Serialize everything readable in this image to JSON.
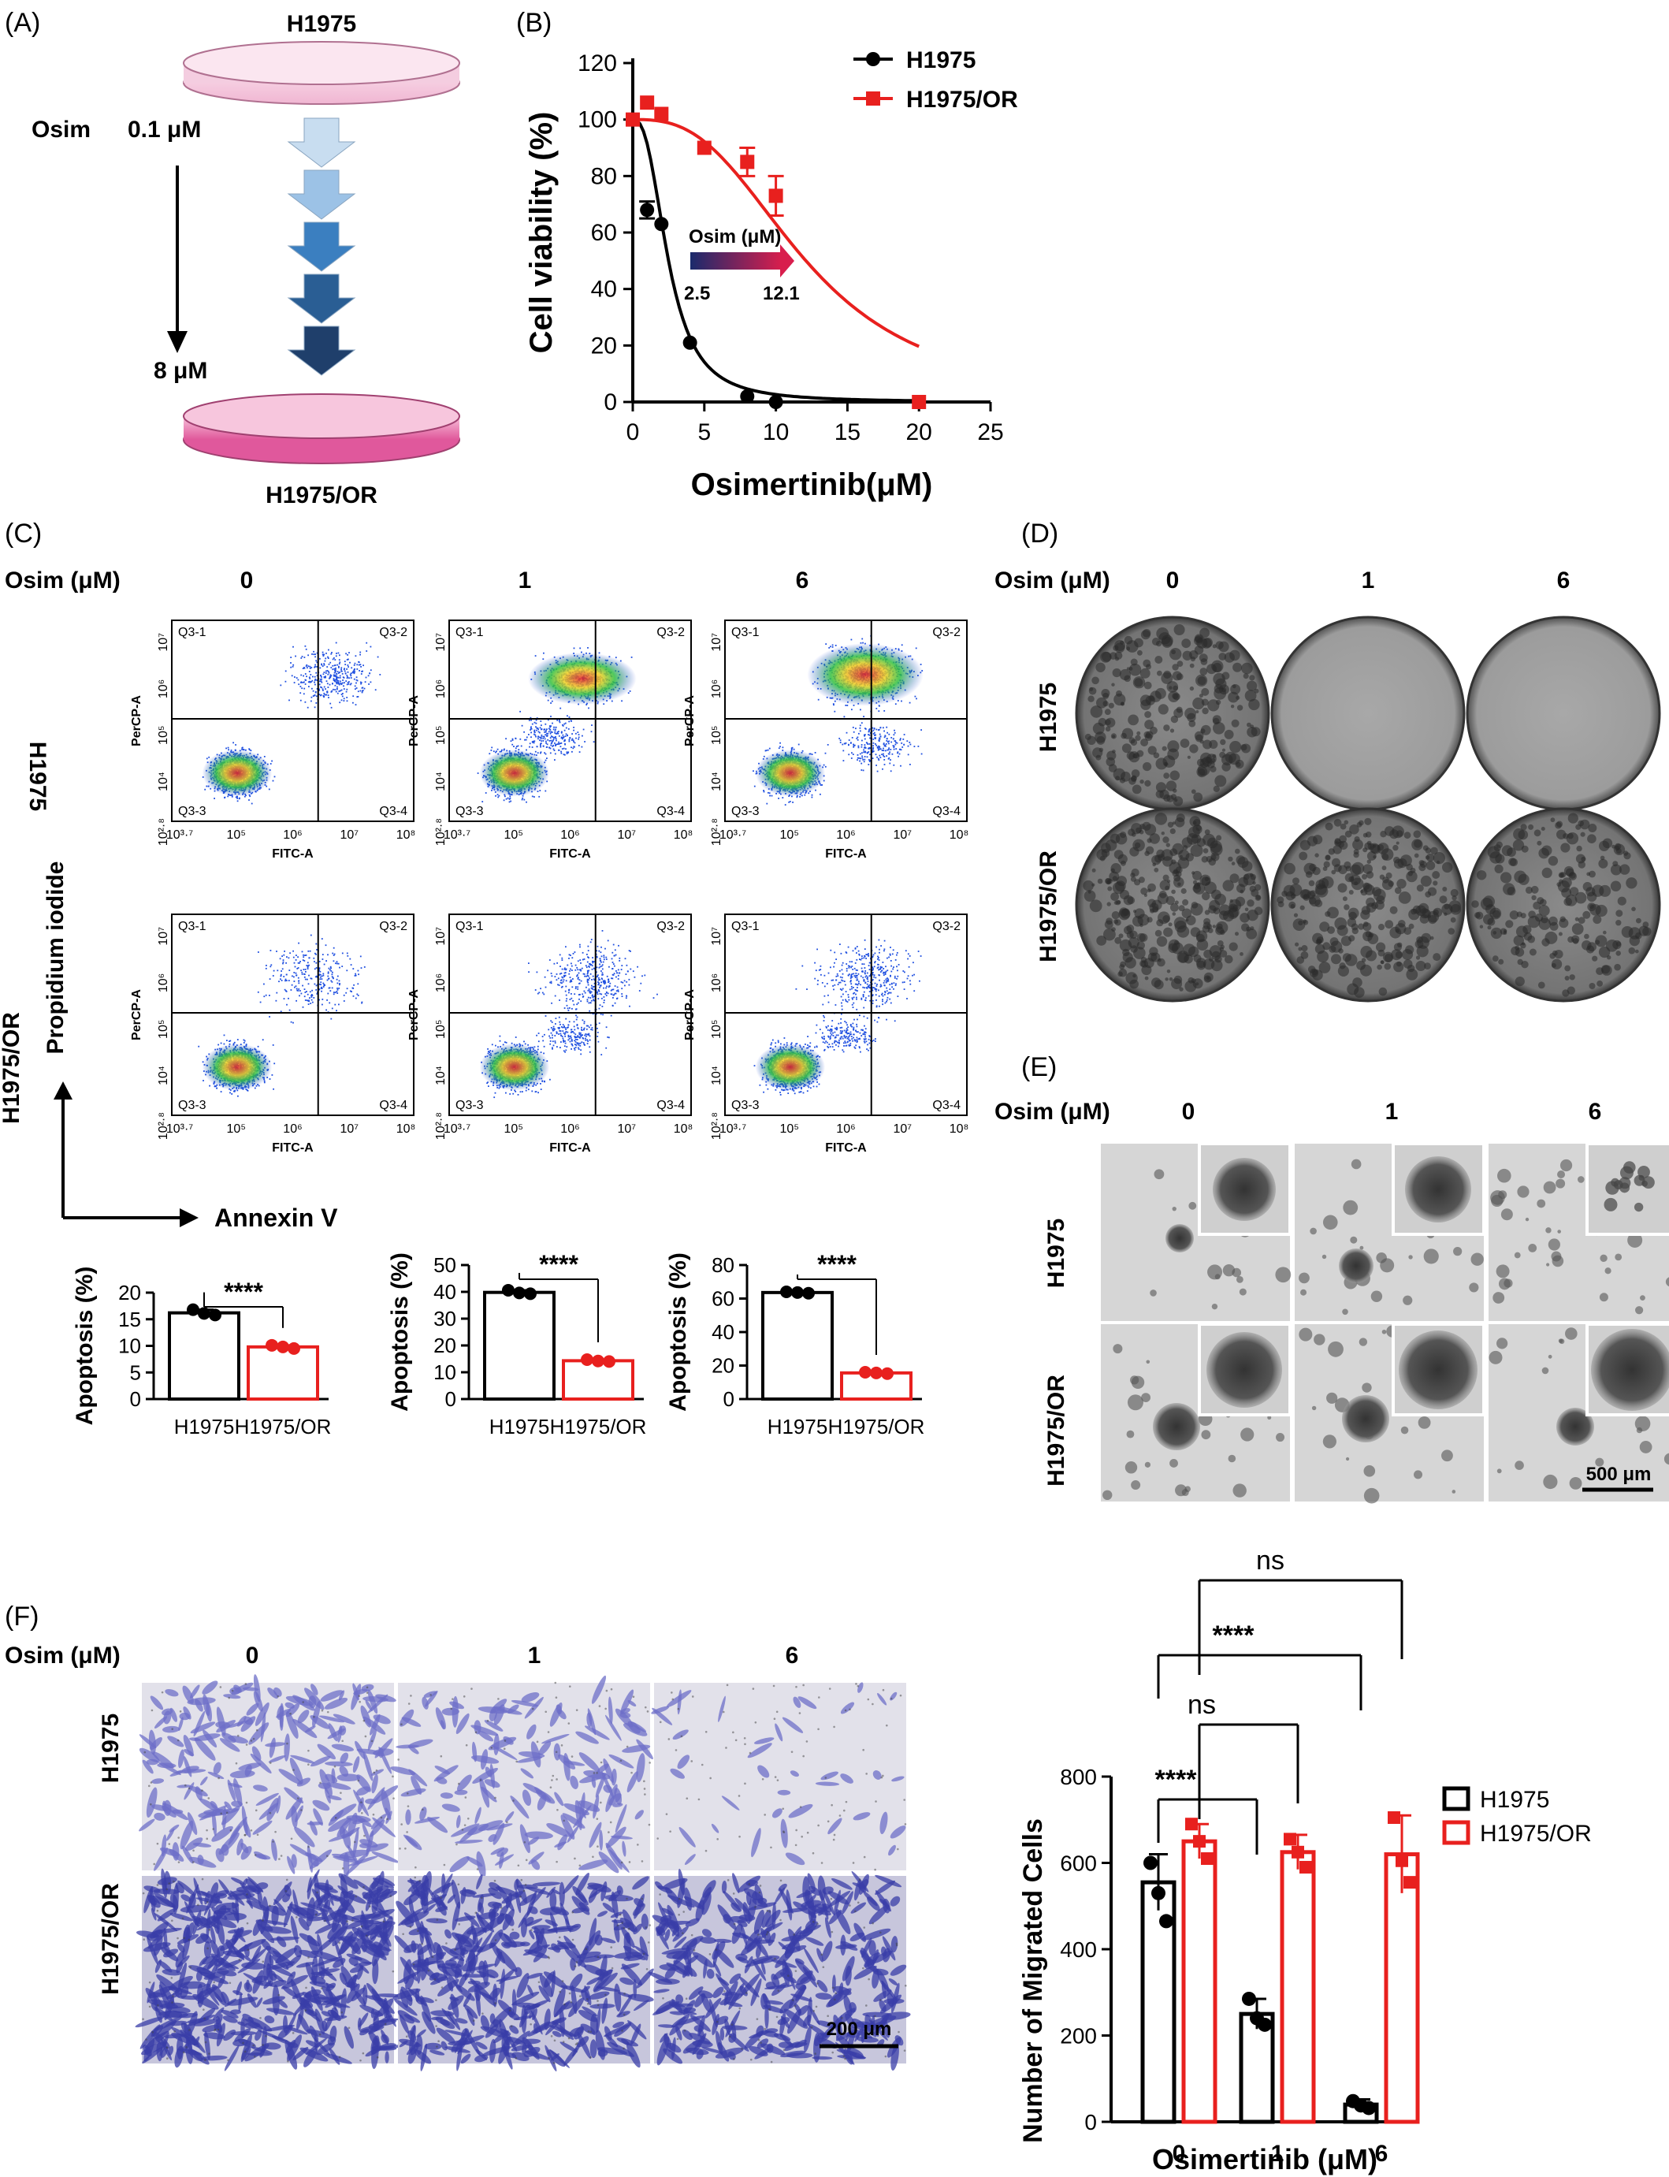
{
  "panels": {
    "A": {
      "letter": "(A)",
      "top": "H1975",
      "bottom": "H1975/OR",
      "osim": "Osim",
      "start": "0.1 μM",
      "end": "8 μM"
    },
    "B": {
      "letter": "(B)",
      "arrow_label": "Osim (μM)",
      "arrow_start": "2.5",
      "arrow_end": "12.1"
    },
    "C": {
      "letter": "(C)",
      "osim": "Osim (μM)",
      "doses": [
        "0",
        "1",
        "6"
      ],
      "rows": [
        "H1975",
        "H1975/OR"
      ],
      "pi": "Propidium iodide",
      "annexin": "Annexin V",
      "quadrants": [
        "Q3-1",
        "Q3-2",
        "Q3-3",
        "Q3-4"
      ],
      "ylab": "PerCP-A",
      "xlab": "FITC-A",
      "yticks": [
        "10⁷",
        "10⁶",
        "10⁵",
        "10⁴",
        "10²·⁸"
      ]
    },
    "D": {
      "letter": "(D)",
      "osim": "Osim (μM)",
      "doses": [
        "0",
        "1",
        "6"
      ],
      "rows": [
        "H1975",
        "H1975/OR"
      ]
    },
    "E": {
      "letter": "(E)",
      "osim": "Osim (μM)",
      "doses": [
        "0",
        "1",
        "6"
      ],
      "rows": [
        "H1975",
        "H1975/OR"
      ],
      "scale": "500 μm"
    },
    "F": {
      "letter": "(F)",
      "osim": "Osim (μM)",
      "doses": [
        "0",
        "1",
        "6"
      ],
      "rows": [
        "H1975",
        "H1975/OR"
      ],
      "scale": "200 μm"
    }
  },
  "colors": {
    "h1975": "#000000",
    "h1975or": "#e8201e"
  },
  "chart_data": [
    {
      "id": "B",
      "type": "line",
      "xlabel": "Osimertinib(μM)",
      "ylabel": "Cell viability (%)",
      "xlim": [
        0,
        25
      ],
      "ylim": [
        0,
        120
      ],
      "xticks": [
        0,
        5,
        10,
        15,
        20,
        25
      ],
      "yticks": [
        0,
        20,
        40,
        60,
        80,
        100,
        120
      ],
      "series": [
        {
          "name": "H1975",
          "x": [
            0,
            1,
            2,
            4,
            8,
            10
          ],
          "y": [
            100,
            68,
            63,
            21,
            2,
            0
          ],
          "err": [
            0,
            3,
            0,
            0,
            0,
            0
          ],
          "ic50": 2.5
        },
        {
          "name": "H1975/OR",
          "x": [
            0,
            1,
            2,
            5,
            8,
            10,
            20
          ],
          "y": [
            100,
            106,
            102,
            90,
            85,
            73,
            0
          ],
          "err": [
            0,
            0,
            0,
            0,
            5,
            7,
            0
          ],
          "ic50": 12.1
        }
      ]
    },
    {
      "id": "C1",
      "type": "bar",
      "ylabel": "Apoptosis (%)",
      "ylim": [
        0,
        20
      ],
      "yticks": [
        0,
        5,
        10,
        15,
        20
      ],
      "categories": [
        "H1975",
        "H1975/OR"
      ],
      "values": [
        16.2,
        9.8
      ],
      "points": [
        [
          16.8,
          16.1,
          15.8
        ],
        [
          10.1,
          9.8,
          9.5
        ]
      ],
      "sig": "****"
    },
    {
      "id": "C2",
      "type": "bar",
      "ylabel": "Apoptosis (%)",
      "ylim": [
        0,
        50
      ],
      "yticks": [
        0,
        10,
        20,
        30,
        40,
        50
      ],
      "categories": [
        "H1975",
        "H1975/OR"
      ],
      "values": [
        39.8,
        14.3
      ],
      "points": [
        [
          40.6,
          39.6,
          39.3
        ],
        [
          14.7,
          14.2,
          14.0
        ]
      ],
      "sig": "****"
    },
    {
      "id": "C3",
      "type": "bar",
      "ylabel": "Apoptosis (%)",
      "ylim": [
        0,
        80
      ],
      "yticks": [
        0,
        20,
        40,
        60,
        80
      ],
      "categories": [
        "H1975",
        "H1975/OR"
      ],
      "values": [
        63.6,
        15.6
      ],
      "points": [
        [
          64.0,
          63.6,
          63.2
        ],
        [
          16.0,
          15.6,
          15.2
        ]
      ],
      "sig": "****"
    },
    {
      "id": "F",
      "type": "bar",
      "xlabel": "Osimertinib (μM)",
      "ylabel": "Number of Migrated Cells",
      "categories": [
        "0",
        "1",
        "6"
      ],
      "ylim": [
        0,
        800
      ],
      "yticks": [
        0,
        200,
        400,
        600,
        800
      ],
      "series": [
        {
          "name": "H1975",
          "values": [
            555,
            250,
            40
          ],
          "err": [
            65,
            35,
            12
          ],
          "points": [
            [
              600,
              530,
              465
            ],
            [
              285,
              240,
              225
            ],
            [
              48,
              38,
              32
            ]
          ]
        },
        {
          "name": "H1975/OR",
          "values": [
            650,
            625,
            620
          ],
          "err": [
            40,
            40,
            90
          ],
          "points": [
            [
              690,
              650,
              610
            ],
            [
              655,
              625,
              590
            ],
            [
              705,
              605,
              555
            ]
          ]
        }
      ],
      "comparisons": [
        {
          "label": "****",
          "from": "0",
          "to": "1"
        },
        {
          "label": "ns",
          "from": "0",
          "to": "1"
        },
        {
          "label": "****",
          "from": "0",
          "to": "6"
        },
        {
          "label": "ns",
          "from": "0",
          "to": "6"
        }
      ]
    }
  ]
}
